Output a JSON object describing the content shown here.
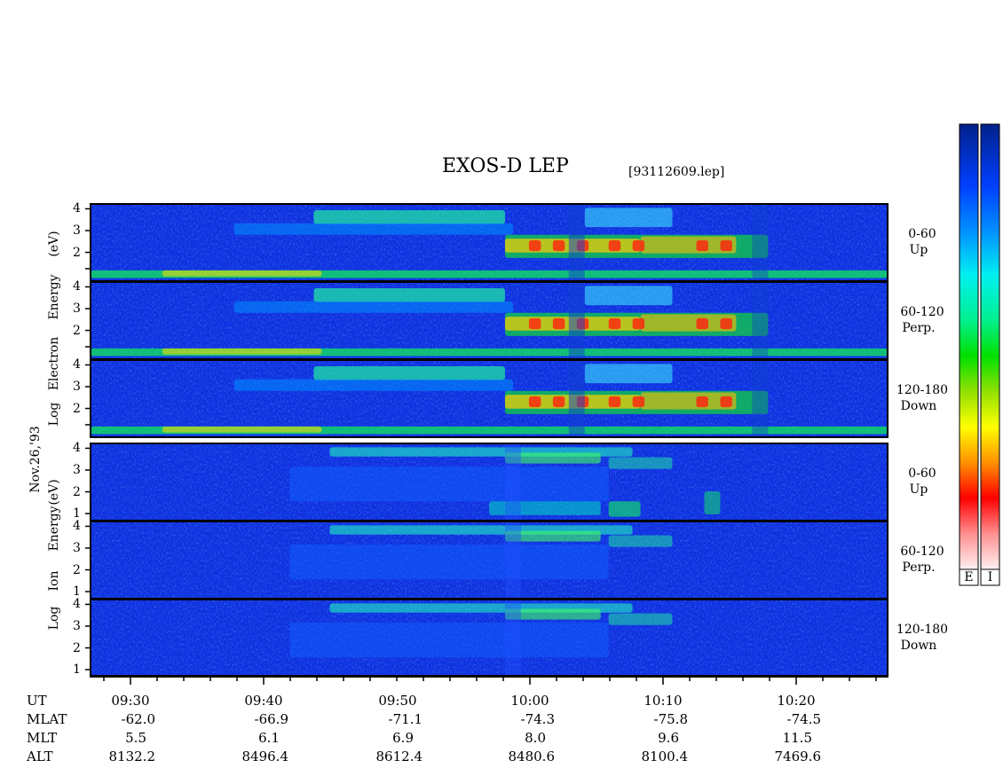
{
  "header": {
    "title": "EXOS-D LEP",
    "file": "[93112609.lep]"
  },
  "date_label": "Nov.26,'93",
  "chart_data": {
    "type": "heatmap",
    "title": "EXOS-D LEP",
    "x_axis": {
      "tick_labels": [
        "09:30",
        "09:40",
        "09:50",
        "10:00",
        "10:10",
        "10:20"
      ]
    },
    "y_ticks": [
      "1",
      "2",
      "3",
      "4"
    ],
    "groups": [
      {
        "name": "electron",
        "ylabel_words": [
          "Log",
          "Electron",
          "Energy",
          "(eV)"
        ],
        "panels": [
          {
            "pitch": "0-60",
            "direction": "Up"
          },
          {
            "pitch": "60-120",
            "direction": "Perp."
          },
          {
            "pitch": "120-180",
            "direction": "Down"
          }
        ]
      },
      {
        "name": "ion",
        "ylabel_words": [
          "Log",
          "Ion",
          "Energy",
          "(eV)"
        ],
        "panels": [
          {
            "pitch": "0-60",
            "direction": "Up"
          },
          {
            "pitch": "60-120",
            "direction": "Perp."
          },
          {
            "pitch": "120-180",
            "direction": "Down"
          }
        ]
      }
    ],
    "colorbars": [
      "E",
      "I"
    ],
    "ephemeris": {
      "labels": [
        "UT",
        "MLAT",
        "MLT",
        "ALT"
      ],
      "MLAT": [
        "-62.0",
        "-66.9",
        "-71.1",
        "-74.3",
        "-75.8",
        "-74.5"
      ],
      "MLT": [
        "5.5",
        "6.1",
        "6.9",
        "8.0",
        "9.6",
        "11.5"
      ],
      "ALT": [
        "8132.2",
        "8496.4",
        "8612.4",
        "8480.6",
        "8100.4",
        "7469.6"
      ]
    }
  }
}
